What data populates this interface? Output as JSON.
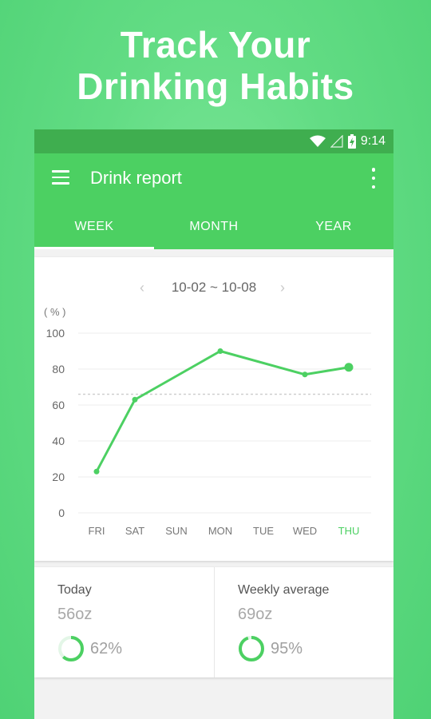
{
  "headline": {
    "line1": "Track Your",
    "line2": "Drinking Habits"
  },
  "status_bar": {
    "time": "9:14",
    "icons": [
      "wifi-icon",
      "signal-icon",
      "battery-charging-icon"
    ]
  },
  "app_bar": {
    "title": "Drink report",
    "menu_icon": "hamburger-menu-icon",
    "overflow_icon": "more-vertical-icon"
  },
  "tabs": [
    {
      "label": "WEEK",
      "active": true
    },
    {
      "label": "MONTH",
      "active": false
    },
    {
      "label": "YEAR",
      "active": false
    }
  ],
  "date_range": {
    "label": "10-02 ~ 10-08",
    "prev_icon": "chevron-left-icon",
    "next_icon": "chevron-right-icon"
  },
  "chart_data": {
    "type": "line",
    "ylabel": "( % )",
    "ylim": [
      0,
      100
    ],
    "yticks": [
      0,
      20,
      40,
      60,
      80,
      100
    ],
    "categories": [
      "FRI",
      "SAT",
      "SUN",
      "MON",
      "TUE",
      "WED",
      "THU"
    ],
    "highlight_category": "THU",
    "series": [
      {
        "values": [
          23,
          63,
          null,
          90,
          null,
          77,
          81
        ]
      }
    ],
    "reference_line": 66,
    "grid": true,
    "line_color": "#4cd062",
    "highlight_color": "#4cd062"
  },
  "stats": [
    {
      "label": "Today",
      "value": "56oz",
      "percent_label": "62%",
      "percent": 62
    },
    {
      "label": "Weekly average",
      "value": "69oz",
      "percent_label": "95%",
      "percent": 95
    }
  ],
  "colors": {
    "primary": "#4cd062",
    "status_bar": "#3fae4f"
  }
}
